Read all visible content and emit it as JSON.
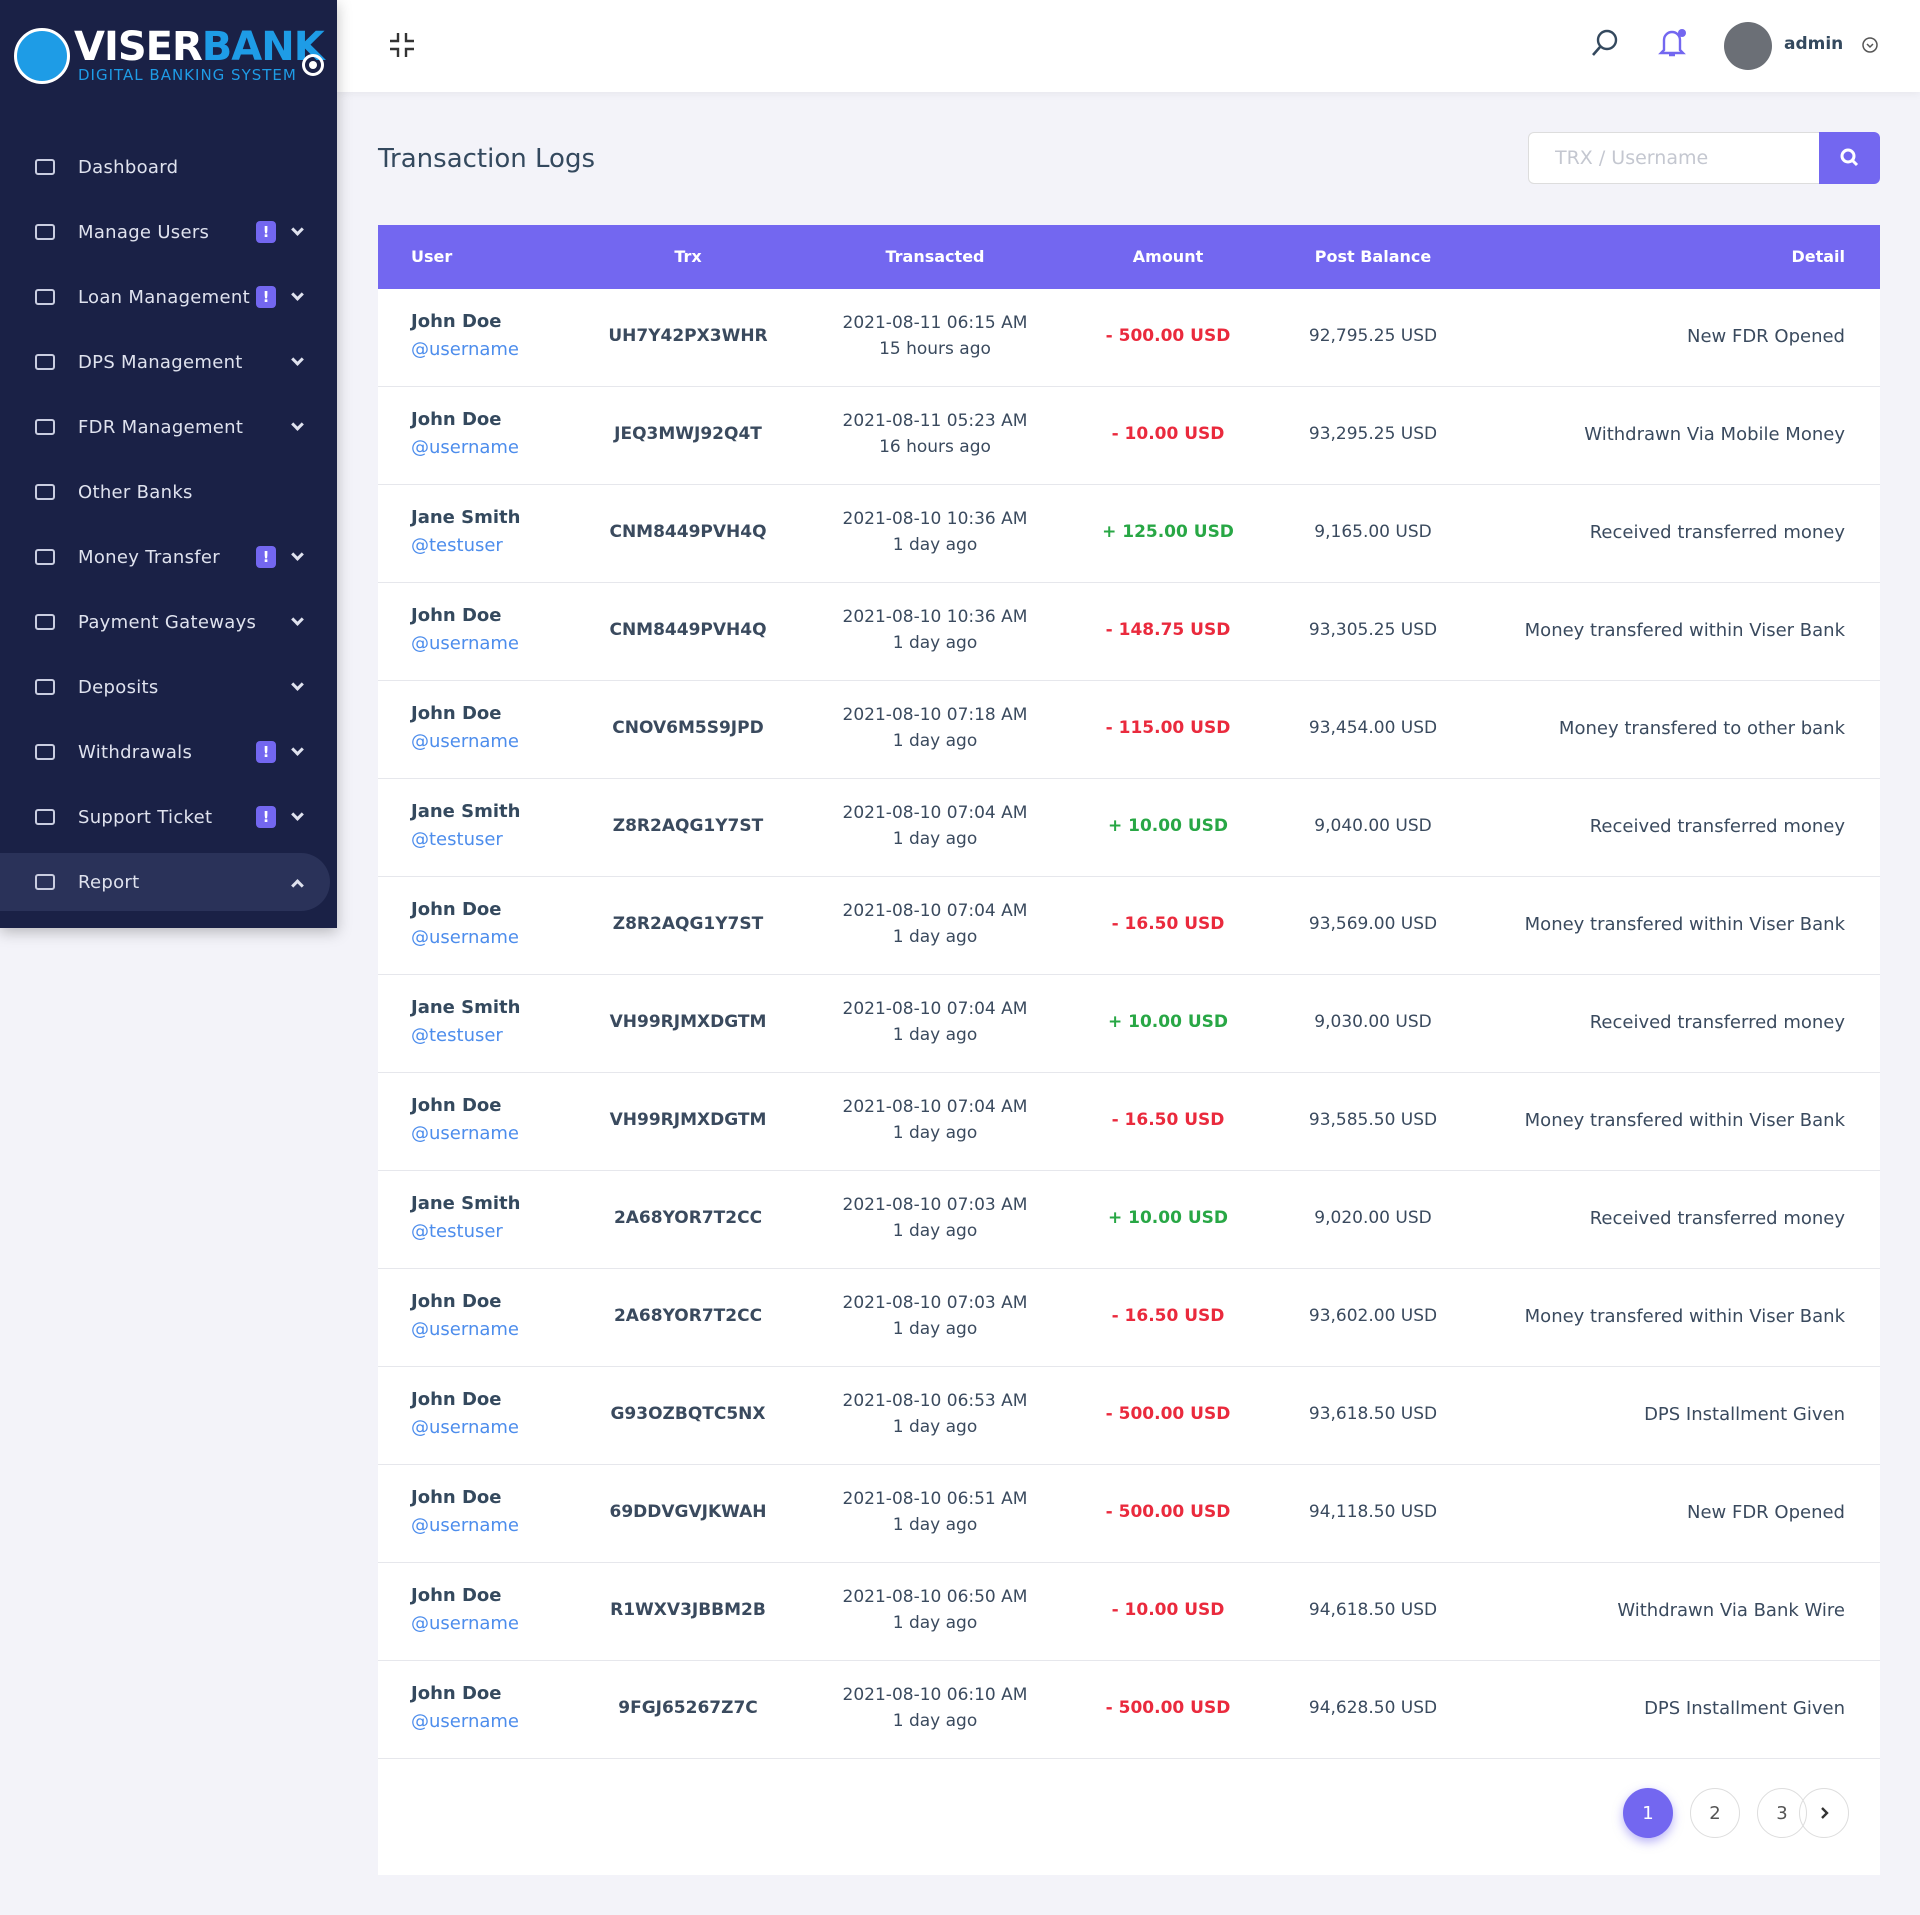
{
  "brand": {
    "name_a": "VISER",
    "name_b": "BANK",
    "tagline": "DIGITAL BANKING SYSTEM"
  },
  "sidebar": [
    {
      "label": "Dashboard"
    },
    {
      "label": "Manage Users",
      "badge": "!"
    },
    {
      "label": "Loan Management",
      "badge": "!"
    },
    {
      "label": "DPS Management"
    },
    {
      "label": "FDR Management"
    },
    {
      "label": "Other Banks"
    },
    {
      "label": "Money Transfer",
      "badge": "!"
    },
    {
      "label": "Payment Gateways"
    },
    {
      "label": "Deposits"
    },
    {
      "label": "Withdrawals",
      "badge": "!"
    },
    {
      "label": "Support Ticket",
      "badge": "!"
    },
    {
      "label": "Report"
    }
  ],
  "topbar": {
    "user": "admin"
  },
  "header": {
    "title": "Transaction Logs",
    "search_placeholder": "TRX / Username"
  },
  "table": {
    "columns": [
      "User",
      "Trx",
      "Transacted",
      "Amount",
      "Post Balance",
      "Detail"
    ],
    "rows": [
      [
        "John Doe",
        "@username",
        "UH7Y42PX3WHR",
        "2021-08-11 06:15 AM",
        "15 hours ago",
        "- 500.00 USD",
        "92,795.25 USD",
        "New FDR Opened"
      ],
      [
        "John Doe",
        "@username",
        "JEQ3MWJ92Q4T",
        "2021-08-11 05:23 AM",
        "16 hours ago",
        "- 10.00 USD",
        "93,295.25 USD",
        "Withdrawn Via Mobile Money"
      ],
      [
        "Jane Smith",
        "@testuser",
        "CNM8449PVH4Q",
        "2021-08-10 10:36 AM",
        "1 day ago",
        "+ 125.00 USD",
        "9,165.00 USD",
        "Received transferred money"
      ],
      [
        "John Doe",
        "@username",
        "CNM8449PVH4Q",
        "2021-08-10 10:36 AM",
        "1 day ago",
        "- 148.75 USD",
        "93,305.25 USD",
        "Money transfered within Viser Bank"
      ],
      [
        "John Doe",
        "@username",
        "CNOV6M5S9JPD",
        "2021-08-10 07:18 AM",
        "1 day ago",
        "- 115.00 USD",
        "93,454.00 USD",
        "Money transfered to other bank"
      ],
      [
        "Jane Smith",
        "@testuser",
        "Z8R2AQG1Y7ST",
        "2021-08-10 07:04 AM",
        "1 day ago",
        "+ 10.00 USD",
        "9,040.00 USD",
        "Received transferred money"
      ],
      [
        "John Doe",
        "@username",
        "Z8R2AQG1Y7ST",
        "2021-08-10 07:04 AM",
        "1 day ago",
        "- 16.50 USD",
        "93,569.00 USD",
        "Money transfered within Viser Bank"
      ],
      [
        "Jane Smith",
        "@testuser",
        "VH99RJMXDGTM",
        "2021-08-10 07:04 AM",
        "1 day ago",
        "+ 10.00 USD",
        "9,030.00 USD",
        "Received transferred money"
      ],
      [
        "John Doe",
        "@username",
        "VH99RJMXDGTM",
        "2021-08-10 07:04 AM",
        "1 day ago",
        "- 16.50 USD",
        "93,585.50 USD",
        "Money transfered within Viser Bank"
      ],
      [
        "Jane Smith",
        "@testuser",
        "2A68YOR7T2CC",
        "2021-08-10 07:03 AM",
        "1 day ago",
        "+ 10.00 USD",
        "9,020.00 USD",
        "Received transferred money"
      ],
      [
        "John Doe",
        "@username",
        "2A68YOR7T2CC",
        "2021-08-10 07:03 AM",
        "1 day ago",
        "- 16.50 USD",
        "93,602.00 USD",
        "Money transfered within Viser Bank"
      ],
      [
        "John Doe",
        "@username",
        "G93OZBQTC5NX",
        "2021-08-10 06:53 AM",
        "1 day ago",
        "- 500.00 USD",
        "93,618.50 USD",
        "DPS Installment Given"
      ],
      [
        "John Doe",
        "@username",
        "69DDVGVJKWAH",
        "2021-08-10 06:51 AM",
        "1 day ago",
        "- 500.00 USD",
        "94,118.50 USD",
        "New FDR Opened"
      ],
      [
        "John Doe",
        "@username",
        "R1WXV3JBBM2B",
        "2021-08-10 06:50 AM",
        "1 day ago",
        "- 10.00 USD",
        "94,618.50 USD",
        "Withdrawn Via Bank Wire"
      ],
      [
        "John Doe",
        "@username",
        "9FGJ65267Z7C",
        "2021-08-10 06:10 AM",
        "1 day ago",
        "- 500.00 USD",
        "94,628.50 USD",
        "DPS Installment Given"
      ]
    ]
  },
  "pagination": {
    "pages": [
      "1",
      "2",
      "3"
    ],
    "current": 0
  }
}
